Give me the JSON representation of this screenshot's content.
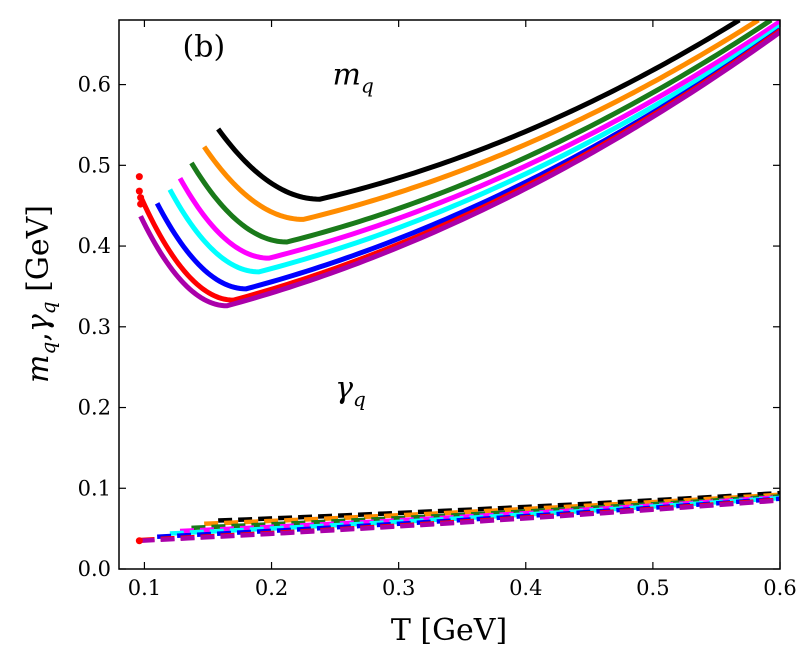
{
  "chart_data": {
    "type": "line",
    "title": "",
    "panel_label": "(b)",
    "xlabel": "T [GeV]",
    "ylabel": "m_q, γ_q [GeV]",
    "ylabel_parts": {
      "m": "m",
      "q1": "q",
      "sep": ",",
      "g": "γ",
      "q2": "q",
      "unit": " [GeV]"
    },
    "xlim": [
      0.08,
      0.6
    ],
    "ylim": [
      0.0,
      0.68
    ],
    "xticks": [
      0.1,
      0.2,
      0.3,
      0.4,
      0.5,
      0.6
    ],
    "xtick_labels": [
      "0.1",
      "0.2",
      "0.3",
      "0.4",
      "0.5",
      "0.6"
    ],
    "yticks": [
      0.0,
      0.1,
      0.2,
      0.3,
      0.4,
      0.5,
      0.6
    ],
    "ytick_labels": [
      "0.0",
      "0.1",
      "0.2",
      "0.3",
      "0.4",
      "0.5",
      "0.6"
    ],
    "grid": false,
    "annotations": [
      {
        "id": "mq",
        "base": "m",
        "sub": "q",
        "x": 0.248,
        "y": 0.6
      },
      {
        "id": "gq",
        "base": "γ",
        "sub": "q",
        "x": 0.25,
        "y": 0.212
      }
    ],
    "panel_pos": {
      "x": 0.13,
      "y": 0.635
    },
    "mass_curves": [
      {
        "color": "#000000",
        "Tstart": 0.158,
        "mstart": 0.545,
        "Tmin": 0.238,
        "mmin": 0.458,
        "Tend": 0.568,
        "mend": 0.68
      },
      {
        "color": "#ff8c00",
        "Tstart": 0.147,
        "mstart": 0.523,
        "Tmin": 0.225,
        "mmin": 0.433,
        "Tend": 0.583,
        "mend": 0.68
      },
      {
        "color": "#1a7a1a",
        "Tstart": 0.137,
        "mstart": 0.503,
        "Tmin": 0.212,
        "mmin": 0.405,
        "Tend": 0.593,
        "mend": 0.68
      },
      {
        "color": "#ff00ff",
        "Tstart": 0.128,
        "mstart": 0.484,
        "Tmin": 0.198,
        "mmin": 0.385,
        "Tend": 0.6,
        "mend": 0.678
      },
      {
        "color": "#00ffff",
        "Tstart": 0.12,
        "mstart": 0.47,
        "Tmin": 0.19,
        "mmin": 0.368,
        "Tend": 0.6,
        "mend": 0.672
      },
      {
        "color": "#0000ff",
        "Tstart": 0.11,
        "mstart": 0.453,
        "Tmin": 0.18,
        "mmin": 0.347,
        "Tend": 0.6,
        "mend": 0.668
      },
      {
        "color": "#ff0000",
        "Tstart": 0.098,
        "mstart": 0.458,
        "Tmin": 0.17,
        "mmin": 0.333,
        "Tend": 0.6,
        "mend": 0.667
      },
      {
        "color": "#aa00aa",
        "Tstart": 0.097,
        "mstart": 0.437,
        "Tmin": 0.165,
        "mmin": 0.326,
        "Tend": 0.6,
        "mend": 0.665
      }
    ],
    "width_curves": [
      {
        "color": "#000000",
        "Tstart": 0.158,
        "gstart": 0.06,
        "Tend": 0.6,
        "gend": 0.094
      },
      {
        "color": "#ff8c00",
        "Tstart": 0.147,
        "gstart": 0.056,
        "Tend": 0.6,
        "gend": 0.092
      },
      {
        "color": "#1a7a1a",
        "Tstart": 0.137,
        "gstart": 0.051,
        "Tend": 0.6,
        "gend": 0.09
      },
      {
        "color": "#ff00ff",
        "Tstart": 0.128,
        "gstart": 0.047,
        "Tend": 0.6,
        "gend": 0.089
      },
      {
        "color": "#00ffff",
        "Tstart": 0.12,
        "gstart": 0.044,
        "Tend": 0.6,
        "gend": 0.088
      },
      {
        "color": "#0000ff",
        "Tstart": 0.11,
        "gstart": 0.04,
        "Tend": 0.6,
        "gend": 0.087
      },
      {
        "color": "#ff0000",
        "Tstart": 0.097,
        "gstart": 0.036,
        "Tend": 0.6,
        "gend": 0.086
      },
      {
        "color": "#aa00aa",
        "Tstart": 0.097,
        "gstart": 0.035,
        "Tend": 0.6,
        "gend": 0.085
      }
    ],
    "red_points": [
      {
        "x": 0.096,
        "y": 0.486
      },
      {
        "x": 0.096,
        "y": 0.468
      },
      {
        "x": 0.097,
        "y": 0.46
      },
      {
        "x": 0.097,
        "y": 0.452
      },
      {
        "x": 0.096,
        "y": 0.035
      }
    ]
  }
}
